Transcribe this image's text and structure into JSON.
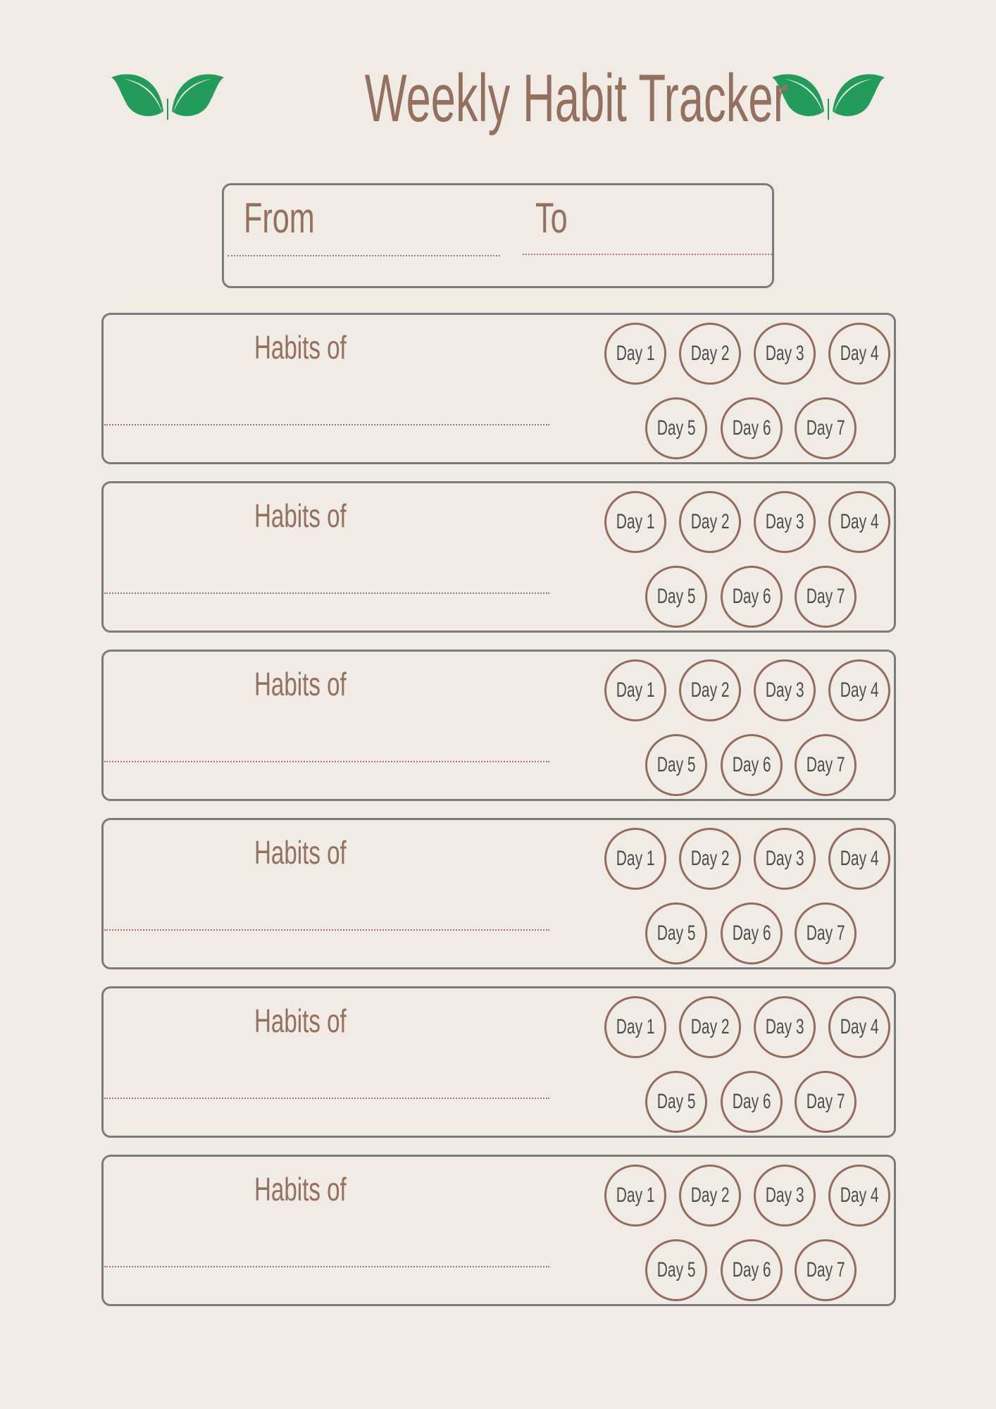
{
  "header": {
    "title": "Weekly Habit Tracker",
    "leaf_icon": "leaf-pair-icon",
    "leaf_color": "#239b5a"
  },
  "date_range": {
    "from_label": "From",
    "to_label": "To",
    "from_value": "",
    "to_value": ""
  },
  "habits": [
    {
      "label": "Habits of",
      "days": [
        "Day 1",
        "Day 2",
        "Day 3",
        "Day 4",
        "Day 5",
        "Day 6",
        "Day 7"
      ]
    },
    {
      "label": "Habits of",
      "days": [
        "Day 1",
        "Day 2",
        "Day 3",
        "Day 4",
        "Day 5",
        "Day 6",
        "Day 7"
      ]
    },
    {
      "label": "Habits of",
      "days": [
        "Day 1",
        "Day 2",
        "Day 3",
        "Day 4",
        "Day 5",
        "Day 6",
        "Day 7"
      ]
    },
    {
      "label": "Habits of",
      "days": [
        "Day 1",
        "Day 2",
        "Day 3",
        "Day 4",
        "Day 5",
        "Day 6",
        "Day 7"
      ]
    },
    {
      "label": "Habits of",
      "days": [
        "Day 1",
        "Day 2",
        "Day 3",
        "Day 4",
        "Day 5",
        "Day 6",
        "Day 7"
      ]
    },
    {
      "label": "Habits of",
      "days": [
        "Day 1",
        "Day 2",
        "Day 3",
        "Day 4",
        "Day 5",
        "Day 6",
        "Day 7"
      ]
    }
  ],
  "colors": {
    "background": "#f0ebe5",
    "text_brown": "#94705f",
    "border_gray": "#7b7b7b",
    "circle_brown": "#946c5e",
    "day_text": "#4d4d4d"
  }
}
